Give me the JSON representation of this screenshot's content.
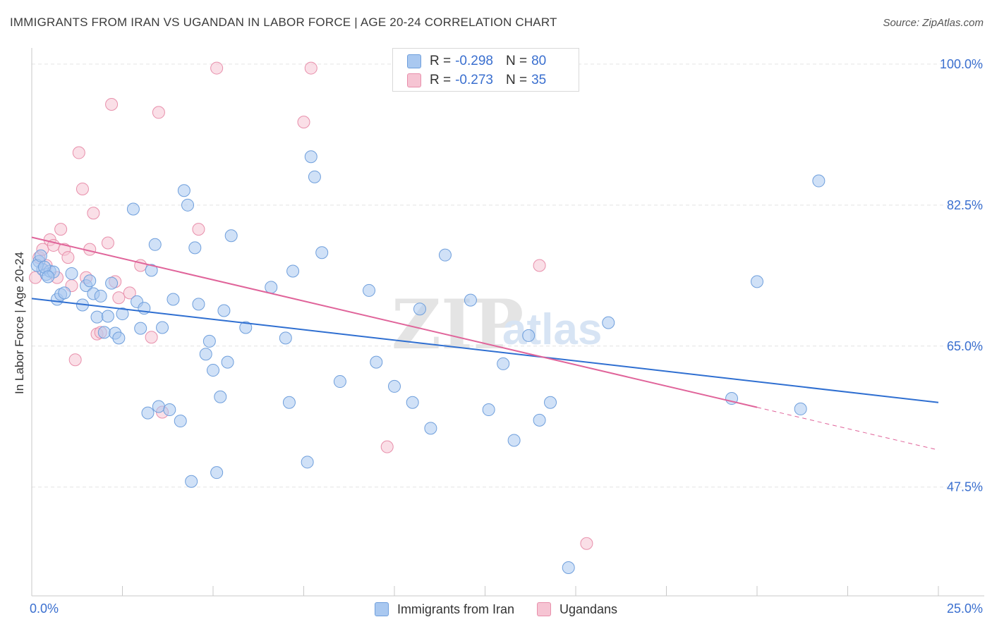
{
  "header": {
    "title": "IMMIGRANTS FROM IRAN VS UGANDAN IN LABOR FORCE | AGE 20-24 CORRELATION CHART",
    "source": "Source: ZipAtlas.com"
  },
  "watermark": {
    "zip": "ZIP",
    "atlas": "atlas"
  },
  "colors": {
    "blue_fill": "#a9c8f0",
    "blue_stroke": "#6f9fdc",
    "blue_line": "#2f6fd1",
    "pink_fill": "#f6c4d3",
    "pink_stroke": "#e88fab",
    "pink_line": "#e0649a",
    "tick_label": "#3a6fcf",
    "grid": "#e3e3e3"
  },
  "legend": {
    "r_label": "R = ",
    "n_label": "N = ",
    "entries": [
      {
        "r": "-0.298",
        "n": "80"
      },
      {
        "r": "-0.273",
        "n": "35"
      }
    ]
  },
  "chart_data": {
    "type": "scatter",
    "title": "IMMIGRANTS FROM IRAN VS UGANDAN IN LABOR FORCE | AGE 20-24 CORRELATION CHART",
    "ylabel": "In Labor Force | Age 20-24",
    "xlabel": "",
    "xlim": [
      0,
      25
    ],
    "ylim": [
      34,
      102
    ],
    "x_tick_labels": [
      "0.0%",
      "25.0%"
    ],
    "y_ticks": [
      47.5,
      65.0,
      82.5,
      100.0
    ],
    "y_tick_labels": [
      "47.5%",
      "65.0%",
      "82.5%",
      "100.0%"
    ],
    "grid": true,
    "legend_position": "top-center",
    "series": [
      {
        "name": "Immigrants from Iran",
        "trend": {
          "x": [
            0,
            25
          ],
          "y": [
            70.9,
            58.0
          ]
        },
        "points": [
          [
            0.2,
            75.5
          ],
          [
            0.3,
            74.5
          ],
          [
            0.4,
            73.9
          ],
          [
            0.5,
            74.3
          ],
          [
            0.6,
            74.2
          ],
          [
            0.7,
            70.8
          ],
          [
            0.8,
            71.4
          ],
          [
            0.9,
            71.6
          ],
          [
            1.1,
            74.0
          ],
          [
            1.4,
            70.1
          ],
          [
            1.5,
            72.5
          ],
          [
            1.6,
            73.1
          ],
          [
            1.7,
            71.5
          ],
          [
            1.8,
            68.6
          ],
          [
            1.9,
            71.2
          ],
          [
            2.0,
            66.7
          ],
          [
            2.1,
            68.7
          ],
          [
            2.2,
            72.8
          ],
          [
            2.3,
            66.6
          ],
          [
            2.4,
            66.0
          ],
          [
            2.5,
            69.0
          ],
          [
            2.8,
            82.0
          ],
          [
            2.9,
            70.5
          ],
          [
            3.0,
            67.2
          ],
          [
            3.1,
            69.7
          ],
          [
            3.2,
            56.7
          ],
          [
            3.3,
            74.4
          ],
          [
            3.4,
            77.6
          ],
          [
            3.5,
            57.5
          ],
          [
            3.6,
            67.3
          ],
          [
            3.8,
            57.1
          ],
          [
            3.9,
            70.8
          ],
          [
            4.1,
            55.7
          ],
          [
            4.2,
            84.3
          ],
          [
            4.3,
            82.5
          ],
          [
            4.4,
            48.2
          ],
          [
            4.5,
            77.2
          ],
          [
            4.6,
            70.2
          ],
          [
            4.8,
            64.0
          ],
          [
            4.9,
            65.6
          ],
          [
            5.0,
            62.0
          ],
          [
            5.1,
            49.3
          ],
          [
            5.2,
            58.7
          ],
          [
            5.3,
            69.4
          ],
          [
            5.4,
            63.0
          ],
          [
            5.5,
            78.7
          ],
          [
            5.9,
            67.3
          ],
          [
            6.6,
            72.3
          ],
          [
            7.0,
            66.0
          ],
          [
            7.1,
            58.0
          ],
          [
            7.2,
            74.3
          ],
          [
            7.6,
            50.6
          ],
          [
            7.7,
            88.5
          ],
          [
            7.8,
            86.0
          ],
          [
            8.0,
            76.6
          ],
          [
            8.5,
            60.6
          ],
          [
            9.3,
            71.9
          ],
          [
            9.5,
            63.0
          ],
          [
            10.0,
            60.0
          ],
          [
            10.5,
            58.0
          ],
          [
            10.7,
            69.6
          ],
          [
            11.0,
            54.8
          ],
          [
            11.4,
            76.3
          ],
          [
            12.1,
            70.7
          ],
          [
            12.6,
            57.1
          ],
          [
            13.0,
            62.8
          ],
          [
            13.3,
            53.3
          ],
          [
            13.7,
            66.3
          ],
          [
            14.0,
            55.8
          ],
          [
            14.3,
            58.0
          ],
          [
            14.8,
            37.5
          ],
          [
            15.9,
            67.9
          ],
          [
            19.3,
            58.5
          ],
          [
            20.0,
            73.0
          ],
          [
            21.2,
            57.2
          ],
          [
            21.7,
            85.5
          ],
          [
            0.15,
            75.0
          ],
          [
            0.25,
            76.2
          ],
          [
            0.35,
            74.8
          ],
          [
            0.45,
            73.6
          ]
        ]
      },
      {
        "name": "Ugandans",
        "trend": {
          "x": [
            0,
            20
          ],
          "y": [
            78.5,
            57.4
          ]
        },
        "trend_extension": {
          "x": [
            20,
            25
          ],
          "y": [
            57.4,
            52.1
          ]
        },
        "points": [
          [
            0.1,
            73.5
          ],
          [
            0.2,
            76.0
          ],
          [
            0.3,
            77.0
          ],
          [
            0.4,
            75.0
          ],
          [
            0.5,
            78.2
          ],
          [
            0.6,
            77.5
          ],
          [
            0.7,
            73.5
          ],
          [
            0.8,
            79.5
          ],
          [
            0.9,
            77.0
          ],
          [
            1.0,
            76.0
          ],
          [
            1.1,
            72.5
          ],
          [
            1.2,
            63.3
          ],
          [
            1.3,
            89.0
          ],
          [
            1.4,
            84.5
          ],
          [
            1.5,
            73.5
          ],
          [
            1.6,
            77.0
          ],
          [
            1.7,
            81.5
          ],
          [
            1.8,
            66.5
          ],
          [
            1.9,
            66.7
          ],
          [
            2.1,
            77.8
          ],
          [
            2.2,
            95.0
          ],
          [
            2.3,
            73.0
          ],
          [
            2.4,
            71.0
          ],
          [
            2.7,
            71.6
          ],
          [
            3.0,
            75.0
          ],
          [
            3.3,
            66.1
          ],
          [
            3.5,
            94.0
          ],
          [
            3.6,
            56.8
          ],
          [
            4.6,
            79.5
          ],
          [
            5.1,
            99.5
          ],
          [
            7.5,
            92.8
          ],
          [
            7.7,
            99.5
          ],
          [
            9.8,
            52.5
          ],
          [
            14.0,
            75.0
          ],
          [
            15.3,
            40.5
          ]
        ]
      }
    ]
  }
}
